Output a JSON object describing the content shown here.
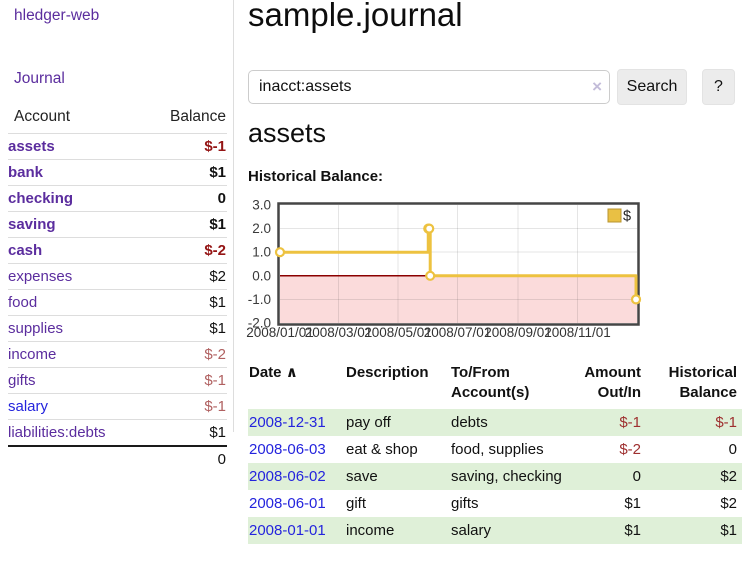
{
  "app": {
    "brand": "hledger-web"
  },
  "sidebar": {
    "journal_label": "Journal",
    "accounts": {
      "header_account": "Account",
      "header_balance": "Balance",
      "rows": [
        {
          "name": "assets",
          "depth": 1,
          "bold": true,
          "balance": "$-1",
          "negative": true,
          "link_variant": "visited"
        },
        {
          "name": "bank",
          "depth": 2,
          "bold": true,
          "balance": "$1",
          "negative": false,
          "link_variant": "visited"
        },
        {
          "name": "checking",
          "depth": 3,
          "bold": true,
          "balance": "0",
          "negative": false,
          "link_variant": "visited"
        },
        {
          "name": "saving",
          "depth": 3,
          "bold": true,
          "balance": "$1",
          "negative": false,
          "link_variant": "visited"
        },
        {
          "name": "cash",
          "depth": 2,
          "bold": true,
          "balance": "$-2",
          "negative": true,
          "link_variant": "visited"
        },
        {
          "name": "expenses",
          "depth": 1,
          "bold": false,
          "balance": "$2",
          "negative": false,
          "link_variant": "visited"
        },
        {
          "name": "food",
          "depth": 2,
          "bold": false,
          "balance": "$1",
          "negative": false,
          "link_variant": "visited"
        },
        {
          "name": "supplies",
          "depth": 2,
          "bold": false,
          "balance": "$1",
          "negative": false,
          "link_variant": "visited"
        },
        {
          "name": "income",
          "depth": 1,
          "bold": false,
          "balance": "$-2",
          "negative": true,
          "link_variant": "visited"
        },
        {
          "name": "gifts",
          "depth": 2,
          "bold": false,
          "balance": "$-1",
          "negative": true,
          "link_variant": "visited"
        },
        {
          "name": "salary",
          "depth": 2,
          "bold": false,
          "balance": "$-1",
          "negative": true,
          "link_variant": "unvisited"
        },
        {
          "name": "liabilities:debts",
          "depth": 1,
          "bold": false,
          "balance": "$1",
          "negative": false,
          "link_variant": "visited"
        }
      ],
      "total": "0"
    }
  },
  "header": {
    "title": "sample.journal"
  },
  "search": {
    "value": "inacct:assets",
    "clear_icon": "×",
    "button_label": "Search",
    "help_label": "?"
  },
  "page": {
    "account_heading": "assets",
    "chart_label": "Historical Balance:"
  },
  "chart_data": {
    "type": "line",
    "step": true,
    "legend": [
      {
        "label": "$",
        "color": "#e9c044"
      }
    ],
    "series": [
      {
        "name": "$",
        "color": "#edc240",
        "points": [
          {
            "date": "2008-01-01",
            "day": 0,
            "value": 1
          },
          {
            "date": "2008-06-01",
            "day": 152,
            "value": 2
          },
          {
            "date": "2008-06-02",
            "day": 153,
            "value": 2
          },
          {
            "date": "2008-06-03",
            "day": 154,
            "value": 0
          },
          {
            "date": "2008-12-31",
            "day": 365,
            "value": -1
          }
        ]
      }
    ],
    "ylim": [
      -2,
      3
    ],
    "yticks": [
      {
        "value": 3,
        "label": "3.0"
      },
      {
        "value": 2,
        "label": "2.0"
      },
      {
        "value": 1,
        "label": "1.0"
      },
      {
        "value": 0,
        "label": "0.0"
      },
      {
        "value": -1,
        "label": "-1.0"
      },
      {
        "value": -2,
        "label": "-2.0"
      }
    ],
    "xlim_days": [
      0,
      366
    ],
    "xticks": [
      {
        "day": 0,
        "label": "2008/01/01"
      },
      {
        "day": 60,
        "label": "2008/03/01"
      },
      {
        "day": 121,
        "label": "2008/05/01"
      },
      {
        "day": 182,
        "label": "2008/07/01"
      },
      {
        "day": 244,
        "label": "2008/09/01"
      },
      {
        "day": 305,
        "label": "2008/11/01"
      }
    ],
    "grid": true,
    "legend_position": "top-right",
    "negative_region_fill": "#fbdbdb",
    "zero_line_color": "#8b0000",
    "border_color": "#454545"
  },
  "register_table": {
    "headers": {
      "date": "Date",
      "sort_icon": "∧",
      "description": "Description",
      "accounts": "To/From Account(s)",
      "amount": "Amount Out/In",
      "balance": "Historical Balance"
    },
    "rows": [
      {
        "date": "2008-12-31",
        "description": "pay off",
        "accounts": "debts",
        "amount": "$-1",
        "amount_negative": true,
        "balance": "$-1",
        "balance_negative": true
      },
      {
        "date": "2008-06-03",
        "description": "eat & shop",
        "accounts": "food, supplies",
        "amount": "$-2",
        "amount_negative": true,
        "balance": "0",
        "balance_negative": false
      },
      {
        "date": "2008-06-02",
        "description": "save",
        "accounts": "saving, checking",
        "amount": "0",
        "amount_negative": false,
        "balance": "$2",
        "balance_negative": false
      },
      {
        "date": "2008-06-01",
        "description": "gift",
        "accounts": "gifts",
        "amount": "$1",
        "amount_negative": false,
        "balance": "$2",
        "balance_negative": false
      },
      {
        "date": "2008-01-01",
        "description": "income",
        "accounts": "salary",
        "amount": "$1",
        "amount_negative": false,
        "balance": "$1",
        "balance_negative": false
      }
    ]
  },
  "colors": {
    "link_purple": "#5b2d9e",
    "link_blue": "#2424dd",
    "negative_bold_red": "#941414",
    "negative_muted_red": "#b06060",
    "table_negative_red": "#9e2f2f",
    "row_stripe_green": "#dff0d8",
    "series_yellow": "#edc240"
  }
}
